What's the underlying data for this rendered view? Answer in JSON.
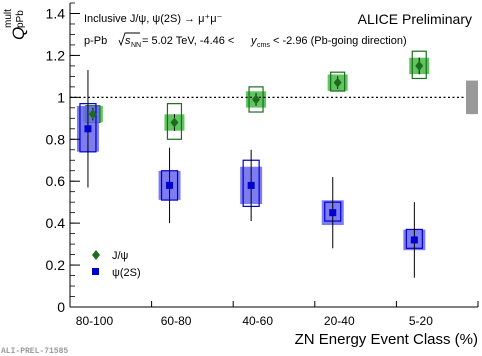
{
  "chart_data": {
    "type": "scatter",
    "categories": [
      "80-100",
      "60-80",
      "40-60",
      "20-40",
      "5-20"
    ],
    "xlabel": "ZN Energy Event Class (%)",
    "ylabel": "Q",
    "ylabel_sup": "mult",
    "ylabel_sub": "pPb",
    "ylim": [
      0,
      1.45
    ],
    "yticks": [
      "0",
      "0.2",
      "0.4",
      "0.6",
      "0.8",
      "1",
      "1.2",
      "1.4"
    ],
    "reference_line": 1,
    "grid": false,
    "legend_position": "bottom-left",
    "annotations": {
      "top_left": "Inclusive J/ψ, ψ(2S) → μ⁺μ⁻",
      "top_right": "ALICE Preliminary",
      "collision_prefix": "p-Pb ",
      "collision_sqrt": "s",
      "collision_sub": "NN",
      "collision_rest": "= 5.02 TeV, -4.46 <",
      "collision_y": "y",
      "collision_y_sub": "cms",
      "collision_tail": "< -2.96 (Pb-going direction)",
      "footer": "ALI-PREL-71585"
    },
    "series": [
      {
        "name": "J/ψ",
        "color": "#1e6b1e",
        "box_color": "#44bb44",
        "marker": "diamond",
        "values": [
          0.92,
          0.88,
          0.99,
          1.07,
          1.15
        ],
        "stat_err": [
          0.03,
          0.04,
          0.03,
          0.03,
          0.04
        ],
        "syst_hi": [
          0.04,
          0.09,
          0.06,
          0.05,
          0.07
        ],
        "syst_lo": [
          0.04,
          0.08,
          0.06,
          0.04,
          0.06
        ],
        "corr_hi": [
          0.02,
          0.02,
          0.02,
          0.02,
          0.02
        ],
        "corr_lo": [
          0.02,
          0.02,
          0.02,
          0.02,
          0.02
        ]
      },
      {
        "name": "ψ(2S)",
        "color": "#0000cc",
        "box_color": "#6666ee",
        "marker": "square",
        "values": [
          0.85,
          0.58,
          0.58,
          0.45,
          0.32
        ],
        "stat_err": [
          0.28,
          0.18,
          0.17,
          0.17,
          0.18
        ],
        "syst_hi": [
          0.12,
          0.07,
          0.12,
          0.05,
          0.05
        ],
        "syst_lo": [
          0.11,
          0.07,
          0.1,
          0.04,
          0.04
        ],
        "corr_hi": [
          0.09,
          0.05,
          0.07,
          0.04,
          0.03
        ],
        "corr_lo": [
          0.09,
          0.05,
          0.07,
          0.04,
          0.03
        ]
      }
    ]
  }
}
